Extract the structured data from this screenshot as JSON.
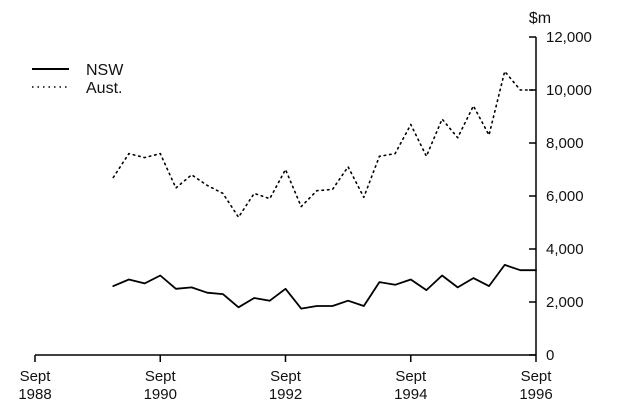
{
  "chart_data": {
    "type": "line",
    "title": "",
    "xlabel": "",
    "ylabel": "$m",
    "x": [
      "1989-12",
      "1990-03",
      "1990-06",
      "1990-09",
      "1990-12",
      "1991-03",
      "1991-06",
      "1991-09",
      "1991-12",
      "1992-03",
      "1992-06",
      "1992-09",
      "1992-12",
      "1993-03",
      "1993-06",
      "1993-09",
      "1993-12",
      "1994-03",
      "1994-06",
      "1994-09",
      "1994-12",
      "1995-03",
      "1995-06",
      "1995-09",
      "1995-12",
      "1996-03",
      "1996-06",
      "1996-09"
    ],
    "series": [
      {
        "name": "NSW",
        "style": "solid",
        "color": "#000000",
        "values": [
          2600,
          2850,
          2700,
          3000,
          2500,
          2550,
          2350,
          2300,
          1800,
          2150,
          2050,
          2500,
          1750,
          1850,
          1850,
          2050,
          1850,
          2750,
          2650,
          2850,
          2450,
          3000,
          2550,
          2900,
          2600,
          3400,
          3200,
          3200
        ]
      },
      {
        "name": "Aust.",
        "style": "dotted",
        "color": "#000000",
        "values": [
          6700,
          7600,
          7450,
          7600,
          6300,
          6800,
          6400,
          6100,
          5200,
          6100,
          5900,
          7000,
          5600,
          6200,
          6250,
          7100,
          5950,
          7500,
          7600,
          8700,
          7500,
          8900,
          8200,
          9400,
          8300,
          10700,
          10000,
          10000
        ]
      }
    ],
    "xaxis": {
      "ticks": [
        {
          "line1": "Sept",
          "line2": "1988",
          "date": "1988-09"
        },
        {
          "line1": "Sept",
          "line2": "1990",
          "date": "1990-09"
        },
        {
          "line1": "Sept",
          "line2": "1992",
          "date": "1992-09"
        },
        {
          "line1": "Sept",
          "line2": "1994",
          "date": "1994-09"
        },
        {
          "line1": "Sept",
          "line2": "1996",
          "date": "1996-09"
        }
      ],
      "range": [
        "1988-09",
        "1996-09"
      ]
    },
    "yaxis": {
      "unit": "$m",
      "position": "right",
      "ticks": [
        0,
        2000,
        4000,
        6000,
        8000,
        10000,
        12000
      ],
      "tick_labels": [
        "0",
        "2,000",
        "4,000",
        "6,000",
        "8,000",
        "10,000",
        "12,000"
      ],
      "range": [
        0,
        12000
      ]
    },
    "grid": false,
    "legend": {
      "placement": "top-left",
      "entries": [
        {
          "label": "NSW",
          "style": "solid"
        },
        {
          "label": "Aust.",
          "style": "dotted"
        }
      ]
    }
  }
}
